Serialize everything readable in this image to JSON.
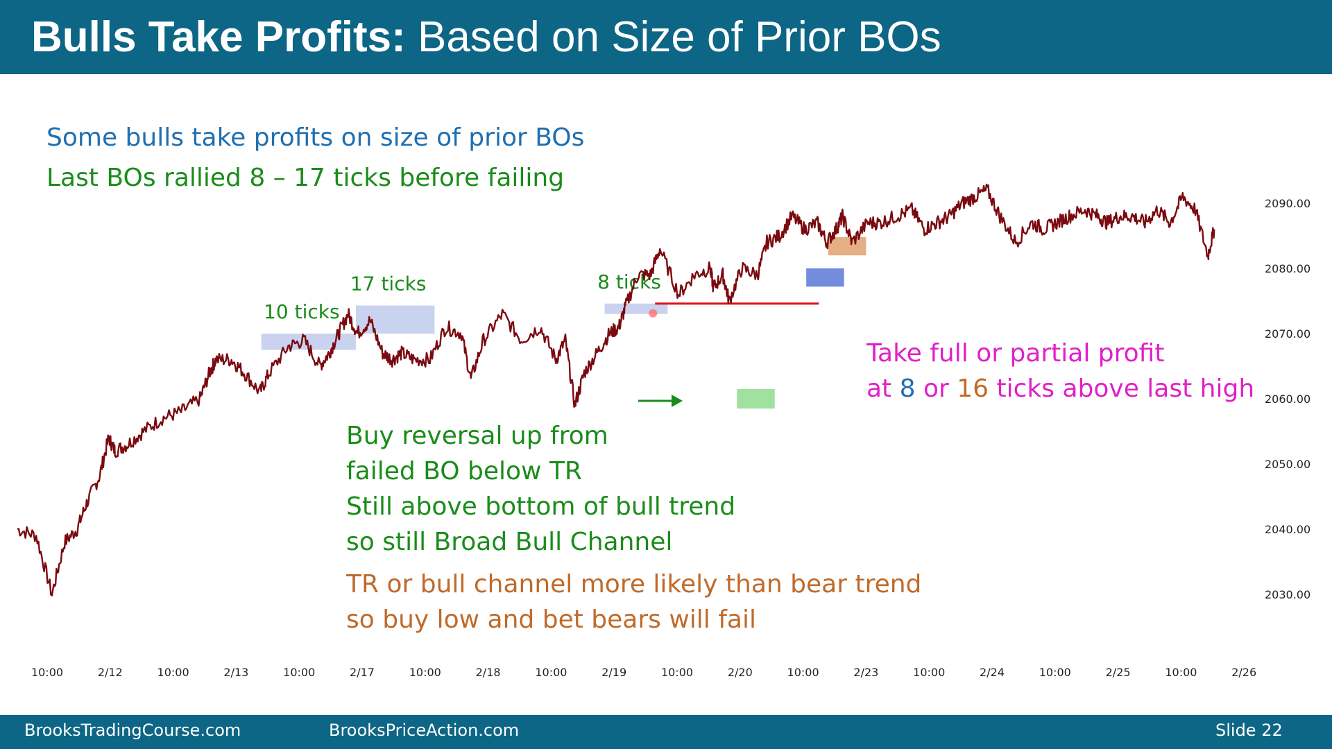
{
  "slide": {
    "title_bold": "Bulls Take Profits:",
    "title_rest": " Based on Size of Prior BOs",
    "footer_left": "BrooksTradingCourse.com",
    "footer_mid": "BrooksPriceAction.com",
    "footer_right": "Slide  22"
  },
  "notes": {
    "line1": "Some bulls take profits on size of prior BOs",
    "line2": "Last BOs rallied 8 – 17 ticks before failing",
    "buy1": "Buy reversal up from",
    "buy2": "failed BO below TR",
    "buy3": "Still above bottom of bull trend",
    "buy4": "so still Broad Bull Channel",
    "tr1": "TR or bull channel more likely than bear trend",
    "tr2": "so buy low and bet bears will fail",
    "profit1": "Take full or partial profit",
    "profit2_a": "at ",
    "profit2_b": "8",
    "profit2_c": " or ",
    "profit2_d": "16",
    "profit2_e": " ticks above last high"
  },
  "chart_data": {
    "type": "line",
    "x_ticks": [
      "10:00",
      "2/12",
      "10:00",
      "2/13",
      "10:00",
      "2/17",
      "10:00",
      "2/18",
      "10:00",
      "2/19",
      "10:00",
      "2/20",
      "10:00",
      "2/23",
      "10:00",
      "2/24",
      "10:00",
      "2/25",
      "10:00",
      "2/26"
    ],
    "y_ticks": [
      "2090.00",
      "2080.00",
      "2070.00",
      "2060.00",
      "2050.00",
      "2040.00",
      "2030.00"
    ],
    "ylim": [
      2025,
      2095
    ],
    "series": [
      {
        "color": "#7a0a10",
        "x": [
          0,
          0.3,
          0.55,
          0.75,
          0.95,
          1.1,
          1.3,
          1.45,
          1.55,
          1.75,
          2.0,
          2.3,
          2.6,
          2.9,
          3.05,
          3.15,
          3.4,
          3.6,
          3.85,
          4.0,
          4.3,
          4.55,
          4.8,
          4.95,
          5.1,
          5.25,
          5.4,
          5.6,
          5.8,
          5.95,
          6.1,
          6.3,
          6.55,
          6.8,
          7.05,
          7.2,
          7.4,
          7.7,
          8.0,
          8.3,
          8.55,
          8.7,
          8.85,
          9.0,
          9.2,
          9.4,
          9.55,
          9.65,
          9.85,
          10.05,
          10.2,
          10.5,
          10.75,
          11.0,
          11.05,
          11.2,
          11.3,
          11.5,
          11.75,
          11.9,
          12.1,
          12.3,
          12.5,
          12.7,
          12.85,
          13.0,
          13.1,
          13.25,
          13.5,
          13.7,
          13.95,
          14.2,
          14.4,
          14.6,
          14.8,
          15.0,
          15.2,
          15.4,
          15.6,
          15.85,
          16.1,
          16.3,
          16.5,
          16.7,
          16.95,
          17.15,
          17.3,
          17.5,
          17.7,
          17.9,
          18.1,
          18.3,
          18.5,
          18.7,
          18.9,
          19.0
        ],
        "y": [
          2040,
          2039,
          2030,
          2038,
          2040,
          2044,
          2048,
          2054,
          2052,
          2053,
          2055,
          2057,
          2058,
          2060,
          2064,
          2066,
          2066,
          2064,
          2061,
          2064,
          2068,
          2069,
          2065,
          2067,
          2070,
          2073,
          2070,
          2072,
          2067,
          2066,
          2067,
          2066,
          2066,
          2071,
          2070,
          2063,
          2069,
          2073,
          2069,
          2071,
          2066,
          2069,
          2059,
          2064,
          2067,
          2070,
          2071,
          2074,
          2079,
          2079,
          2083,
          2076,
          2079,
          2080,
          2077,
          2079,
          2075,
          2080,
          2079,
          2084,
          2085,
          2088,
          2086,
          2087,
          2084,
          2086,
          2088,
          2084,
          2087,
          2087,
          2088,
          2089,
          2086,
          2087,
          2088,
          2090,
          2091,
          2092,
          2088,
          2084,
          2087,
          2086,
          2087,
          2088,
          2089,
          2088,
          2087,
          2088,
          2088,
          2087,
          2089,
          2087,
          2091,
          2089,
          2082,
          2086
        ],
        "tick_x_units_per_label": 1
      }
    ],
    "annotations": [
      {
        "label": "10 ticks",
        "x_from": 3.4,
        "x_to": 4.9,
        "y_from": 2067.5,
        "y_to": 2070
      },
      {
        "label": "17 ticks",
        "x_from": 4.9,
        "x_to": 6.15,
        "y_from": 2070,
        "y_to": 2074.3
      },
      {
        "label": "8 ticks",
        "x_from": 8.85,
        "x_to": 9.85,
        "y_from": 2073,
        "y_to": 2074.6
      },
      {
        "label": "",
        "x_from": 12.05,
        "x_to": 12.65,
        "y_from": 2077.2,
        "y_to": 2080
      },
      {
        "label": "",
        "x_from": 12.4,
        "x_to": 13.0,
        "y_from": 2082,
        "y_to": 2084.8
      },
      {
        "label": "",
        "x_from": 10.95,
        "x_to": 11.55,
        "y_from": 2058.5,
        "y_to": 2061.5
      }
    ],
    "prior_high_line": {
      "x_from": 9.65,
      "x_to": 12.25,
      "y": 2074.6
    },
    "grid": false
  }
}
